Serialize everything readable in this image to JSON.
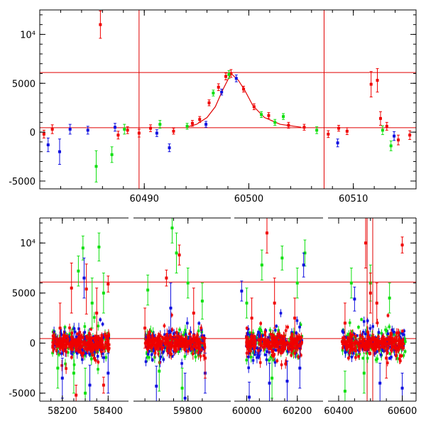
{
  "colors": {
    "red": "#f00000",
    "green": "#10e010",
    "blue": "#1010e0",
    "ref_line": "#e00000"
  },
  "chart_data": [
    {
      "type": "scatter",
      "title": "",
      "xlabel": "",
      "ylabel": "",
      "xlim": [
        60480,
        60516
      ],
      "ylim": [
        -5800,
        12500
      ],
      "grid": false,
      "legend": "none",
      "x_ticks": [
        {
          "value": 60490,
          "label": "60490"
        },
        {
          "value": 60500,
          "label": "60500"
        },
        {
          "value": 60510,
          "label": "60510"
        }
      ],
      "y_ticks": [
        {
          "value": -5000,
          "label": "-5000"
        },
        {
          "value": 0,
          "label": "0"
        },
        {
          "value": 5000,
          "label": "5000"
        },
        {
          "value": 10000,
          "label": "10⁴"
        }
      ],
      "hlines": [
        6100,
        450
      ],
      "vlines": [
        60489.5,
        60507.2
      ],
      "model_curve": {
        "name": "",
        "x": [
          60494,
          60495,
          60496,
          60496.8,
          60497.5,
          60498.3,
          60499,
          60499.6,
          60500.4,
          60501.5,
          60503,
          60505
        ],
        "y": [
          500,
          800,
          1500,
          2600,
          4300,
          6000,
          5300,
          4300,
          2700,
          1500,
          800,
          500
        ]
      },
      "series": [
        {
          "color": "red",
          "points": [
            {
              "x": 60480.4,
              "y": -200,
              "e": 400
            },
            {
              "x": 60481.2,
              "y": 300,
              "e": 450
            },
            {
              "x": 60485.8,
              "y": 11000,
              "e": 1400
            },
            {
              "x": 60487.5,
              "y": -300,
              "e": 400
            },
            {
              "x": 60488.4,
              "y": 200,
              "e": 350
            },
            {
              "x": 60489.5,
              "y": -100,
              "e": 400
            },
            {
              "x": 60490.6,
              "y": 400,
              "e": 350
            },
            {
              "x": 60492.8,
              "y": 100,
              "e": 300
            },
            {
              "x": 60494.6,
              "y": 900,
              "e": 300
            },
            {
              "x": 60495.3,
              "y": 1300,
              "e": 300
            },
            {
              "x": 60496.2,
              "y": 3000,
              "e": 300
            },
            {
              "x": 60497.1,
              "y": 4600,
              "e": 350
            },
            {
              "x": 60497.8,
              "y": 5700,
              "e": 350
            },
            {
              "x": 60498.3,
              "y": 6000,
              "e": 400
            },
            {
              "x": 60499.5,
              "y": 4400,
              "e": 300
            },
            {
              "x": 60500.5,
              "y": 2600,
              "e": 300
            },
            {
              "x": 60501.9,
              "y": 1700,
              "e": 300
            },
            {
              "x": 60503.8,
              "y": 700,
              "e": 300
            },
            {
              "x": 60505.3,
              "y": 500,
              "e": 300
            },
            {
              "x": 60507.6,
              "y": -200,
              "e": 350
            },
            {
              "x": 60508.6,
              "y": 400,
              "e": 300
            },
            {
              "x": 60509.4,
              "y": 100,
              "e": 350
            },
            {
              "x": 60511.7,
              "y": 4900,
              "e": 1300
            },
            {
              "x": 60512.3,
              "y": 5300,
              "e": 1200
            },
            {
              "x": 60512.6,
              "y": 1400,
              "e": 700
            },
            {
              "x": 60513.2,
              "y": 600,
              "e": 400
            },
            {
              "x": 60514.3,
              "y": -800,
              "e": 500
            },
            {
              "x": 60515.4,
              "y": -300,
              "e": 450
            }
          ]
        },
        {
          "color": "green",
          "points": [
            {
              "x": 60485.4,
              "y": -3500,
              "e": 1600
            },
            {
              "x": 60486.9,
              "y": -2300,
              "e": 800
            },
            {
              "x": 60488.1,
              "y": 300,
              "e": 500
            },
            {
              "x": 60491.5,
              "y": 800,
              "e": 400
            },
            {
              "x": 60494.1,
              "y": 600,
              "e": 300
            },
            {
              "x": 60496.6,
              "y": 4000,
              "e": 300
            },
            {
              "x": 60498.1,
              "y": 5900,
              "e": 400
            },
            {
              "x": 60501.2,
              "y": 1800,
              "e": 300
            },
            {
              "x": 60502.5,
              "y": 1000,
              "e": 300
            },
            {
              "x": 60503.3,
              "y": 1600,
              "e": 300
            },
            {
              "x": 60506.5,
              "y": 200,
              "e": 350
            },
            {
              "x": 60512.8,
              "y": 200,
              "e": 450
            },
            {
              "x": 60513.6,
              "y": -1400,
              "e": 500
            }
          ]
        },
        {
          "color": "blue",
          "points": [
            {
              "x": 60480.8,
              "y": -1300,
              "e": 700
            },
            {
              "x": 60481.9,
              "y": -2000,
              "e": 1300
            },
            {
              "x": 60482.9,
              "y": 300,
              "e": 500
            },
            {
              "x": 60484.6,
              "y": 200,
              "e": 400
            },
            {
              "x": 60487.2,
              "y": 500,
              "e": 400
            },
            {
              "x": 60491.2,
              "y": -100,
              "e": 350
            },
            {
              "x": 60492.4,
              "y": -1600,
              "e": 400
            },
            {
              "x": 60495.9,
              "y": 800,
              "e": 300
            },
            {
              "x": 60497.4,
              "y": 4100,
              "e": 300
            },
            {
              "x": 60498.8,
              "y": 5500,
              "e": 350
            },
            {
              "x": 60508.5,
              "y": -1100,
              "e": 400
            },
            {
              "x": 60513.9,
              "y": -400,
              "e": 450
            }
          ]
        }
      ]
    },
    {
      "type": "scatter",
      "title": "",
      "xlabel": "",
      "ylabel": "",
      "ylim": [
        -5800,
        12500
      ],
      "grid": false,
      "legend": "none",
      "x_axis_breaks": [
        {
          "xlim": [
            58120,
            58430
          ]
        },
        {
          "xlim": [
            59620,
            59880
          ]
        },
        {
          "xlim": [
            59965,
            60240
          ]
        },
        {
          "xlim": [
            60380,
            60630
          ]
        }
      ],
      "x_ticks": [
        {
          "value": 58200,
          "label": "58200"
        },
        {
          "value": 58400,
          "label": "58400"
        },
        {
          "value": 59800,
          "label": "59800"
        },
        {
          "value": 60000,
          "label": "60000"
        },
        {
          "value": 60200,
          "label": "60200"
        },
        {
          "value": 60400,
          "label": "60400"
        },
        {
          "value": 60600,
          "label": "60600"
        }
      ],
      "y_ticks": [
        {
          "value": -5000,
          "label": "-5000"
        },
        {
          "value": 0,
          "label": "0"
        },
        {
          "value": 5000,
          "label": "5000"
        },
        {
          "value": 10000,
          "label": "10⁴"
        }
      ],
      "hlines": [
        6100,
        450
      ],
      "vlines": [
        60489.5,
        60507.2
      ],
      "series": [
        {
          "color": "green",
          "points": [
            {
              "x": 58180,
              "y": -2500,
              "e": 2000
            },
            {
              "x": 58270,
              "y": 7200,
              "e": 1500
            },
            {
              "x": 58290,
              "y": 9500,
              "e": 1200
            },
            {
              "x": 58330,
              "y": 4000,
              "e": 2500
            },
            {
              "x": 58360,
              "y": 9600,
              "e": 1400
            },
            {
              "x": 58380,
              "y": 5000,
              "e": 2000
            },
            {
              "x": 58250,
              "y": -3000,
              "e": 2000
            },
            {
              "x": 58300,
              "y": -5000,
              "e": 2500
            },
            {
              "x": 59660,
              "y": 5300,
              "e": 1500
            },
            {
              "x": 59700,
              "y": -2800,
              "e": 2000
            },
            {
              "x": 59745,
              "y": 11500,
              "e": 1500
            },
            {
              "x": 59760,
              "y": 9000,
              "e": 2000
            },
            {
              "x": 59800,
              "y": 6000,
              "e": 1500
            },
            {
              "x": 59850,
              "y": 4200,
              "e": 1800
            },
            {
              "x": 59780,
              "y": -4500,
              "e": 2000
            },
            {
              "x": 60000,
              "y": 4000,
              "e": 1500
            },
            {
              "x": 60060,
              "y": 7800,
              "e": 1500
            },
            {
              "x": 60140,
              "y": 8500,
              "e": 1200
            },
            {
              "x": 60200,
              "y": 6000,
              "e": 1500
            },
            {
              "x": 60230,
              "y": 9000,
              "e": 1300
            },
            {
              "x": 60100,
              "y": -3500,
              "e": 2000
            },
            {
              "x": 60420,
              "y": -4800,
              "e": 2000
            },
            {
              "x": 60440,
              "y": 6000,
              "e": 1500
            },
            {
              "x": 60500,
              "y": 6000,
              "e": 1800
            },
            {
              "x": 60560,
              "y": 4500,
              "e": 1500
            },
            {
              "x": 60480,
              "y": -3000,
              "e": 2000
            }
          ]
        },
        {
          "color": "blue",
          "points": [
            {
              "x": 58200,
              "y": -3500,
              "e": 2000
            },
            {
              "x": 58295,
              "y": 6500,
              "e": 2000
            },
            {
              "x": 58320,
              "y": -4200,
              "e": 2000
            },
            {
              "x": 58400,
              "y": -3000,
              "e": 2000
            },
            {
              "x": 59690,
              "y": -4300,
              "e": 2000
            },
            {
              "x": 59740,
              "y": 3500,
              "e": 2500
            },
            {
              "x": 59790,
              "y": -5500,
              "e": 2500
            },
            {
              "x": 59860,
              "y": -3000,
              "e": 2000
            },
            {
              "x": 59980,
              "y": 5200,
              "e": 1000
            },
            {
              "x": 60010,
              "y": -5400,
              "e": 1500
            },
            {
              "x": 60090,
              "y": -4000,
              "e": 2000
            },
            {
              "x": 60160,
              "y": -3800,
              "e": 2000
            },
            {
              "x": 60225,
              "y": 7800,
              "e": 1200
            },
            {
              "x": 60210,
              "y": -2500,
              "e": 2000
            },
            {
              "x": 60450,
              "y": 4400,
              "e": 1200
            },
            {
              "x": 60530,
              "y": -4000,
              "e": 2000
            },
            {
              "x": 60600,
              "y": -4500,
              "e": 1500
            }
          ]
        },
        {
          "color": "red",
          "points": [
            {
              "x": 58190,
              "y": 1500,
              "e": 2500
            },
            {
              "x": 58240,
              "y": 5500,
              "e": 2500
            },
            {
              "x": 58260,
              "y": -5200,
              "e": 1000
            },
            {
              "x": 58305,
              "y": 5400,
              "e": 2500
            },
            {
              "x": 58350,
              "y": 3000,
              "e": 2500
            },
            {
              "x": 58380,
              "y": -4200,
              "e": 800
            },
            {
              "x": 58400,
              "y": 5900,
              "e": 800
            },
            {
              "x": 59650,
              "y": 1500,
              "e": 2000
            },
            {
              "x": 59725,
              "y": 6500,
              "e": 800
            },
            {
              "x": 59770,
              "y": 8800,
              "e": 1000
            },
            {
              "x": 59820,
              "y": 3000,
              "e": 2500
            },
            {
              "x": 59860,
              "y": -1500,
              "e": 2000
            },
            {
              "x": 60020,
              "y": 2500,
              "e": 2000
            },
            {
              "x": 60080,
              "y": 11000,
              "e": 2000
            },
            {
              "x": 60110,
              "y": 4000,
              "e": 2500
            },
            {
              "x": 60190,
              "y": 2500,
              "e": 2000
            },
            {
              "x": 60420,
              "y": 2000,
              "e": 2000
            },
            {
              "x": 60485,
              "y": 10000,
              "e": 2500
            },
            {
              "x": 60500,
              "y": 5000,
              "e": 2000
            },
            {
              "x": 60520,
              "y": 4000,
              "e": 2000
            },
            {
              "x": 60600,
              "y": 9800,
              "e": 800
            },
            {
              "x": 60550,
              "y": -1500,
              "e": 2000
            }
          ]
        }
      ]
    }
  ]
}
